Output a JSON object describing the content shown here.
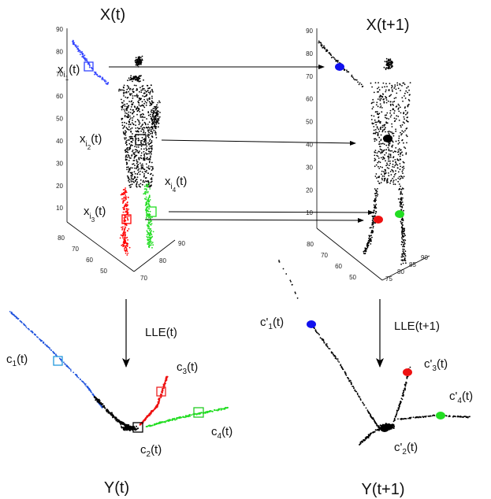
{
  "titles": {
    "xt": "X(t)",
    "xt1": "X(t+1)",
    "yt": "Y(t)",
    "yt1": "Y(t+1)"
  },
  "arrows": {
    "lle_t": "LLE(t)",
    "lle_t1": "LLE(t+1)"
  },
  "point_labels": {
    "xi1": {
      "base": "x",
      "sub": "i",
      "subsub": "1",
      "suffix": "(t)"
    },
    "xi2": {
      "base": "x",
      "sub": "i",
      "subsub": "2",
      "suffix": "(t)"
    },
    "xi3": {
      "base": "x",
      "sub": "i",
      "subsub": "3",
      "suffix": "(t)"
    },
    "xi4": {
      "base": "x",
      "sub": "i",
      "subsub": "4",
      "suffix": "(t)"
    }
  },
  "embed_labels": {
    "c1": {
      "base": "c",
      "sub": "1",
      "suffix": "(t)"
    },
    "c2": {
      "base": "c",
      "sub": "2",
      "suffix": "(t)"
    },
    "c3": {
      "base": "c",
      "sub": "3",
      "suffix": "(t)"
    },
    "c4": {
      "base": "c",
      "sub": "4",
      "suffix": "(t)"
    },
    "cp1": {
      "base": "c'",
      "sub": "1",
      "suffix": "(t)"
    },
    "cp2": {
      "base": "c'",
      "sub": "2",
      "suffix": "(t)"
    },
    "cp3": {
      "base": "c'",
      "sub": "3",
      "suffix": "(t)"
    },
    "cp4": {
      "base": "c'",
      "sub": "4",
      "suffix": "(t)"
    }
  },
  "axes_left": {
    "z_ticks": [
      "90",
      "80",
      "70",
      "60",
      "50",
      "40",
      "30",
      "20",
      "10"
    ],
    "x_ticks": [
      "80",
      "70",
      "60",
      "50"
    ],
    "y_ticks": [
      "70",
      "80",
      "90"
    ]
  },
  "axes_right": {
    "z_ticks": [
      "90",
      "80",
      "70",
      "60",
      "50",
      "40",
      "30",
      "20",
      "10"
    ],
    "x_ticks": [
      "80",
      "70",
      "60",
      "50"
    ],
    "y_ticks": [
      "75",
      "80",
      "85",
      "90"
    ]
  },
  "colors": {
    "body": "#000000",
    "arm": "#3344ff",
    "leg_red": "#ff0000",
    "leg_green": "#22dd22",
    "c1_box": "#2299dd",
    "c3_box": "#ee2222",
    "c4_box": "#22cc22"
  }
}
